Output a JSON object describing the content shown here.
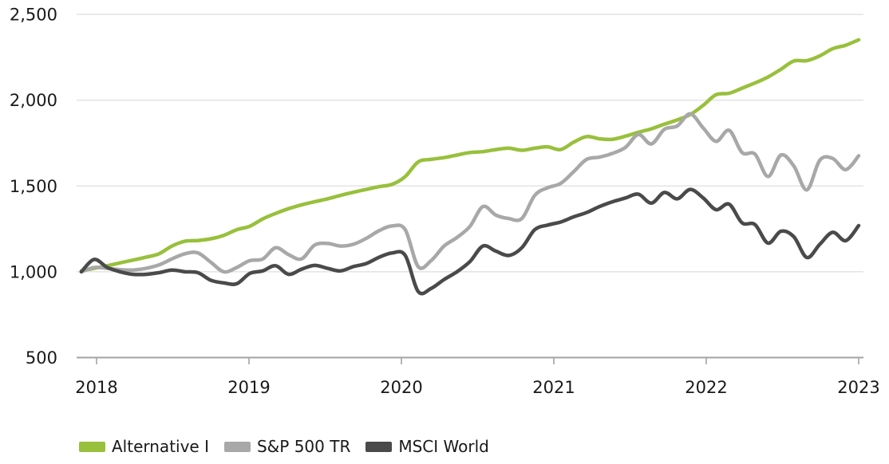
{
  "chart_data": {
    "type": "line",
    "title": "",
    "grid": "horizontal",
    "legend_position": "bottom-left",
    "x_axis": {
      "data_start_year": 2017.9,
      "data_end_year": 2023.0,
      "ticks": [
        {
          "value": 2018,
          "label": "2018"
        },
        {
          "value": 2019,
          "label": "2019"
        },
        {
          "value": 2020,
          "label": "2020"
        },
        {
          "value": 2021,
          "label": "2021"
        },
        {
          "value": 2022,
          "label": "2022"
        },
        {
          "value": 2023,
          "label": "2023"
        }
      ]
    },
    "y_axis": {
      "min": 500,
      "max": 2500,
      "ticks": [
        {
          "value": 500,
          "label": "500"
        },
        {
          "value": 1000,
          "label": "1,000"
        },
        {
          "value": 1500,
          "label": "1,500"
        },
        {
          "value": 2000,
          "label": "2,000"
        },
        {
          "value": 2500,
          "label": "2,500"
        }
      ]
    },
    "series": [
      {
        "name": "Alternative I",
        "color": "#98c03c",
        "values": [
          1005,
          1020,
          1035,
          1052,
          1068,
          1085,
          1105,
          1150,
          1178,
          1182,
          1192,
          1212,
          1245,
          1265,
          1308,
          1340,
          1368,
          1390,
          1408,
          1425,
          1445,
          1463,
          1480,
          1496,
          1510,
          1555,
          1640,
          1655,
          1665,
          1680,
          1695,
          1700,
          1712,
          1720,
          1708,
          1720,
          1728,
          1712,
          1755,
          1788,
          1775,
          1772,
          1790,
          1813,
          1833,
          1860,
          1885,
          1916,
          1970,
          2032,
          2040,
          2070,
          2100,
          2135,
          2180,
          2228,
          2230,
          2258,
          2300,
          2320,
          2352
        ]
      },
      {
        "name": "S&P 500 TR",
        "color": "#a8a8a8",
        "values": [
          1000,
          1025,
          1020,
          1012,
          1010,
          1020,
          1040,
          1075,
          1105,
          1110,
          1055,
          1000,
          1025,
          1065,
          1074,
          1140,
          1100,
          1075,
          1155,
          1165,
          1150,
          1160,
          1195,
          1240,
          1267,
          1245,
          1030,
          1065,
          1150,
          1200,
          1265,
          1380,
          1330,
          1310,
          1310,
          1445,
          1490,
          1515,
          1583,
          1655,
          1668,
          1690,
          1725,
          1800,
          1745,
          1830,
          1850,
          1920,
          1838,
          1760,
          1824,
          1695,
          1685,
          1555,
          1680,
          1616,
          1477,
          1650,
          1660,
          1595,
          1676
        ]
      },
      {
        "name": "MSCI World",
        "color": "#4a4a4a",
        "values": [
          1000,
          1072,
          1025,
          1000,
          985,
          985,
          995,
          1010,
          1000,
          995,
          950,
          935,
          930,
          990,
          1005,
          1035,
          985,
          1015,
          1037,
          1020,
          1005,
          1030,
          1048,
          1085,
          1110,
          1095,
          885,
          903,
          955,
          1000,
          1060,
          1150,
          1120,
          1095,
          1140,
          1245,
          1272,
          1290,
          1320,
          1345,
          1380,
          1408,
          1430,
          1452,
          1400,
          1462,
          1425,
          1480,
          1430,
          1362,
          1394,
          1285,
          1275,
          1167,
          1236,
          1204,
          1083,
          1160,
          1230,
          1181,
          1269
        ]
      }
    ]
  },
  "colors": {
    "background": "#ffffff",
    "gridline": "#e3e3e3",
    "axis": "#a3a3a3",
    "text": "#191919"
  }
}
